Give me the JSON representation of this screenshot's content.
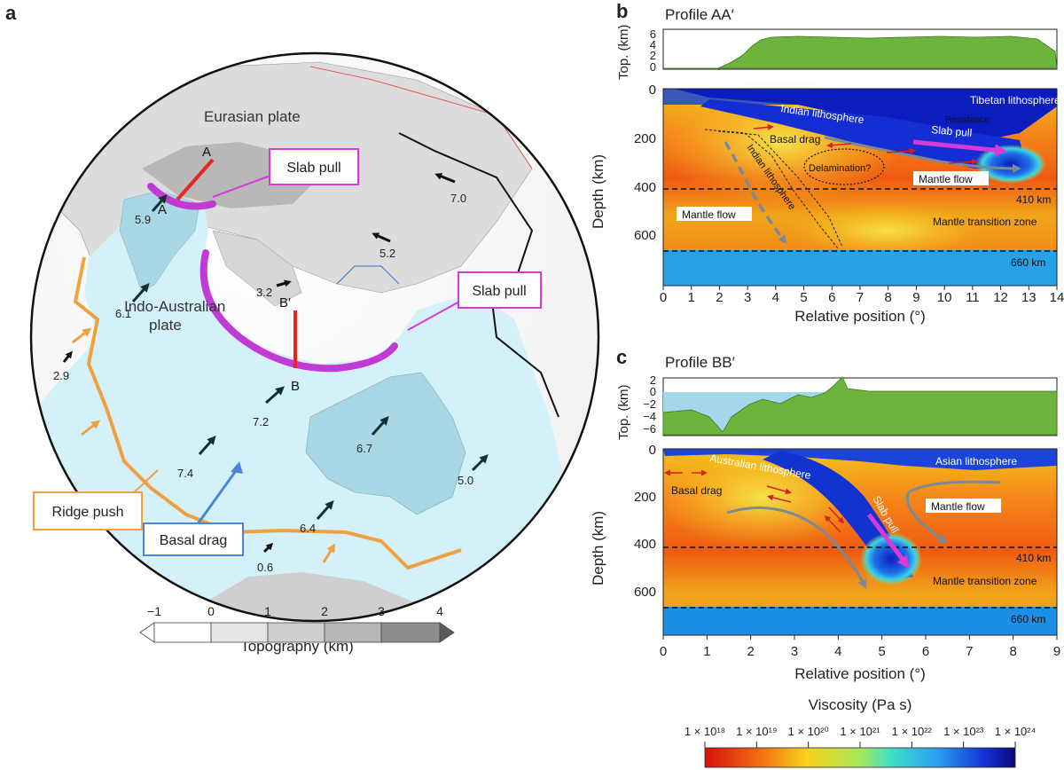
{
  "panels": {
    "a": "a",
    "b": "b",
    "c": "c"
  },
  "globe": {
    "plates": {
      "eurasian": "Eurasian plate",
      "indo_australian_1": "Indo-Australian",
      "indo_australian_2": "plate"
    },
    "boxes": {
      "slab_pull_1": "Slab pull",
      "slab_pull_2": "Slab pull",
      "ridge_push": "Ridge push",
      "basal_drag": "Basal drag"
    },
    "markers": {
      "a_top": "A",
      "a_bottom": "A",
      "b_top": "B′",
      "b_bottom": "B"
    },
    "velocities": [
      "7.0",
      "5.2",
      "5.9",
      "3.2",
      "6.1",
      "2.9",
      "7.2",
      "6.7",
      "7.4",
      "5.0",
      "6.4",
      "0.6"
    ],
    "colors": {
      "ocean": "#d4f1f9",
      "slab_pull": "#c13ad6",
      "ridge": "#f0a040",
      "basal_drag": "#4a86d4",
      "profile_line": "#e8261f"
    }
  },
  "topo_colorbar": {
    "title": "Topography (km)",
    "ticks": [
      "−1",
      "0",
      "1",
      "2",
      "3",
      "4"
    ]
  },
  "profile_aa": {
    "title": "Profile AA′",
    "top_ylabel": "Top. (km)",
    "top_ticks": [
      "6",
      "4",
      "2",
      "0"
    ],
    "ylabel": "Depth (km)",
    "y_ticks": [
      "0",
      "200",
      "400",
      "600"
    ],
    "xlabel": "Relative position (°)",
    "x_ticks": [
      "0",
      "1",
      "2",
      "3",
      "4",
      "5",
      "6",
      "7",
      "8",
      "9",
      "10",
      "11",
      "12",
      "13",
      "14"
    ],
    "labels": {
      "tibetan": "Tibetan lithosphere",
      "indian": "Indian lithosphere",
      "resistance": "Resistance",
      "slab_pull": "Slab pull",
      "basal_drag": "Basal drag",
      "delamination": "Delamination?",
      "indian_slab": "Indian lithosphere",
      "mantle_flow_right": "Mantle flow",
      "mantle_flow_left": "Mantle flow",
      "d410": "410 km",
      "mtz": "Mantle transition zone",
      "d660": "660 km"
    }
  },
  "profile_bb": {
    "title": "Profile BB′",
    "top_ylabel": "Top. (km)",
    "top_ticks": [
      "2",
      "0",
      "−2",
      "−4",
      "−6"
    ],
    "ylabel": "Depth (km)",
    "y_ticks": [
      "0",
      "200",
      "400",
      "600"
    ],
    "xlabel": "Relative position (°)",
    "x_ticks": [
      "0",
      "1",
      "2",
      "3",
      "4",
      "5",
      "6",
      "7",
      "8",
      "9"
    ],
    "labels": {
      "australian": "Australian lithosphere",
      "asian": "Asian lithosphere",
      "basal_drag": "Basal drag",
      "slab_pull": "Slab pull",
      "mantle_flow": "Mantle flow",
      "d410": "410 km",
      "mtz": "Mantle transition zone",
      "d660": "660 km"
    }
  },
  "viscosity_colorbar": {
    "title": "Viscosity (Pa s)",
    "ticks": [
      "1 × 10¹⁸",
      "1 × 10¹⁹",
      "1 × 10²⁰",
      "1 × 10²¹",
      "1 × 10²²",
      "1 × 10²³",
      "1 × 10²⁴"
    ]
  }
}
